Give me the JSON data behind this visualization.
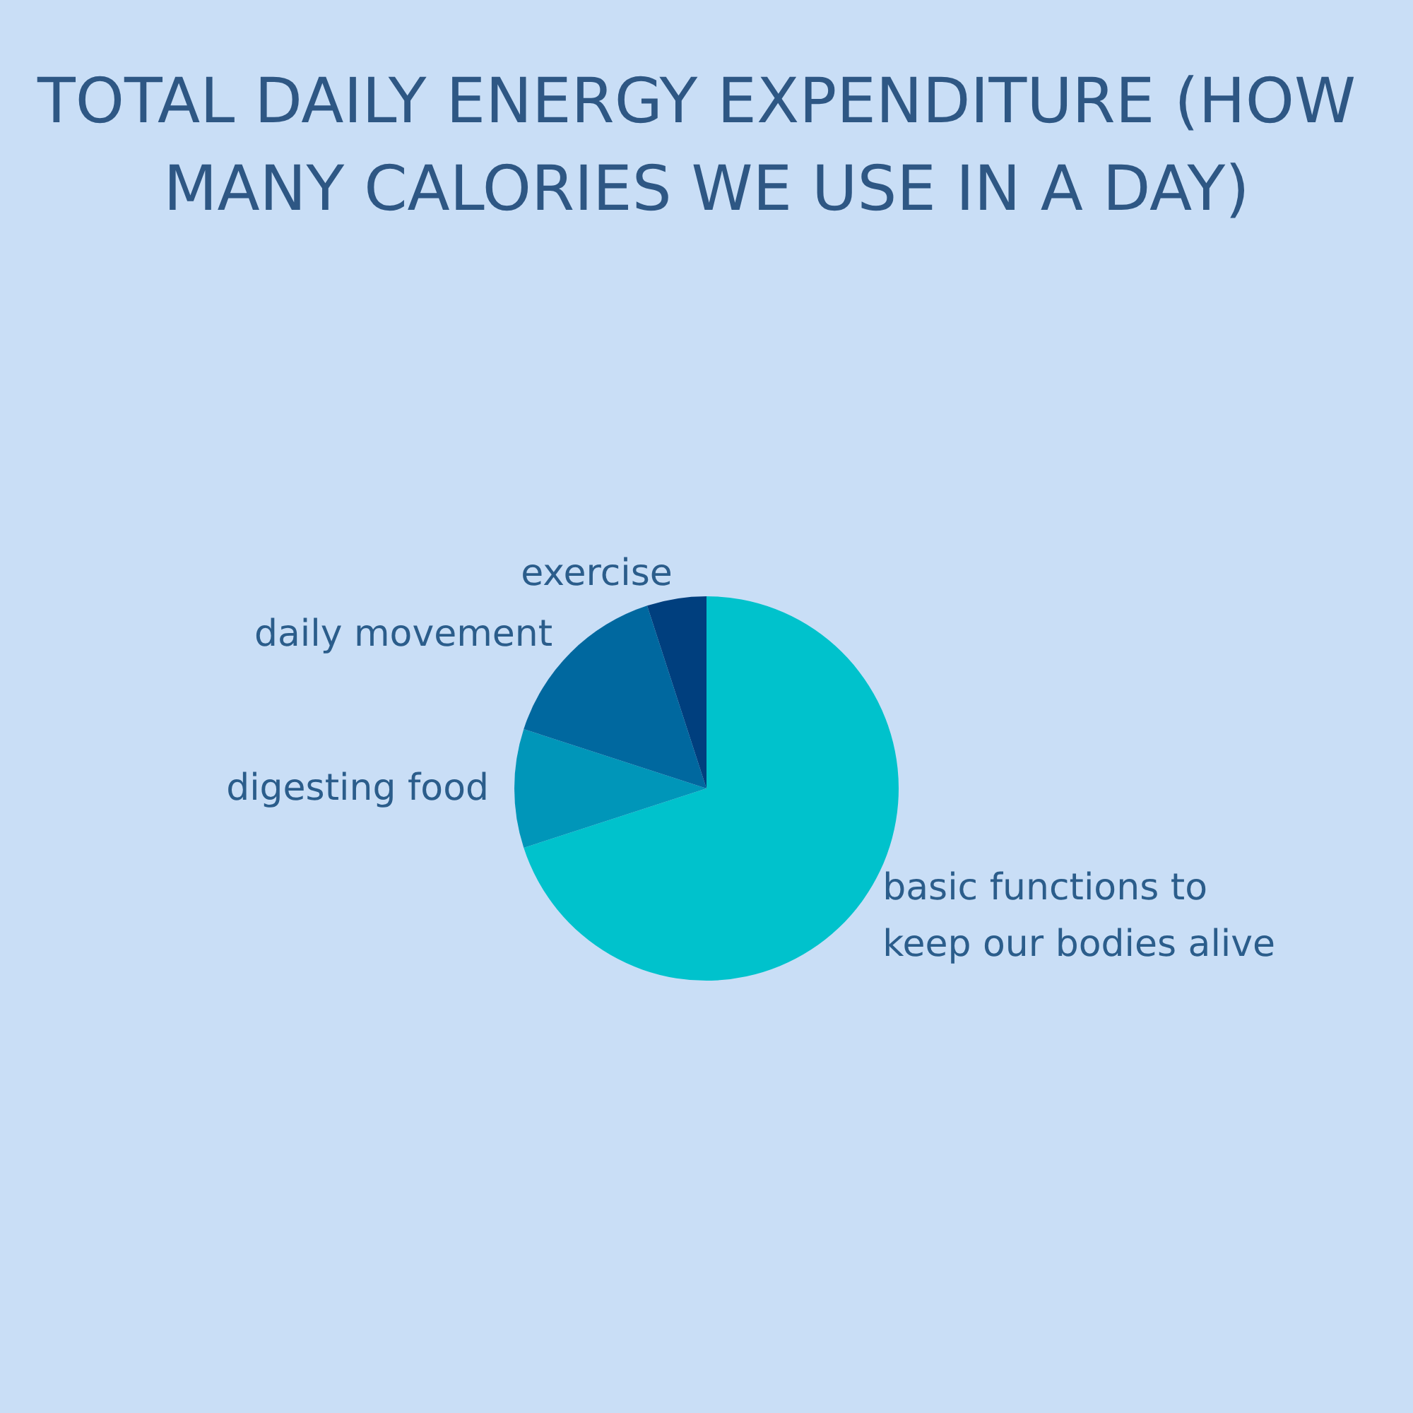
{
  "chart_data": {
    "type": "pie",
    "title": "TOTAL DAILY ENERGY EXPENDITURE (HOW MANY CALORIES WE USE IN A DAY)",
    "categories": [
      "basic functions to keep our bodies alive",
      "digesting food",
      "daily movement",
      "exercise"
    ],
    "values": [
      70,
      10,
      15,
      5
    ],
    "colors": [
      "#00c2cc",
      "#0096b9",
      "#00689f",
      "#003f7e"
    ],
    "legend": false
  }
}
